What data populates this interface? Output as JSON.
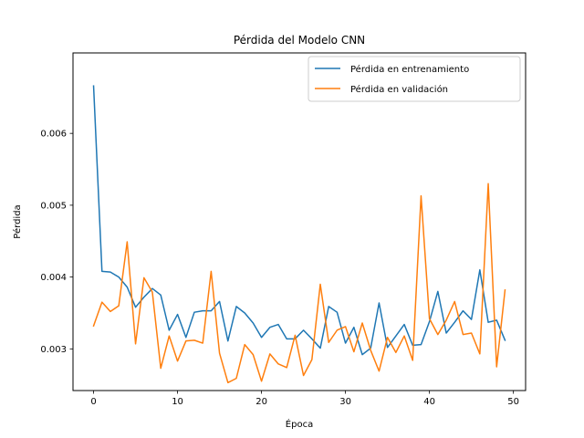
{
  "chart_data": {
    "type": "line",
    "title": "Pérdida del Modelo CNN",
    "xlabel": "Época",
    "ylabel": "Pérdida",
    "xlim": [
      -2.45,
      51.45
    ],
    "ylim": [
      0.00242,
      0.00712
    ],
    "xticks": [
      0,
      10,
      20,
      30,
      40,
      50
    ],
    "xtick_labels": [
      "0",
      "10",
      "20",
      "30",
      "40",
      "50"
    ],
    "yticks": [
      0.003,
      0.004,
      0.005,
      0.006
    ],
    "ytick_labels": [
      "0.003",
      "0.004",
      "0.005",
      "0.006"
    ],
    "grid": false,
    "legend_position": "top-right",
    "x": [
      0,
      1,
      2,
      3,
      4,
      5,
      6,
      7,
      8,
      9,
      10,
      11,
      12,
      13,
      14,
      15,
      16,
      17,
      18,
      19,
      20,
      21,
      22,
      23,
      24,
      25,
      26,
      27,
      28,
      29,
      30,
      31,
      32,
      33,
      34,
      35,
      36,
      37,
      38,
      39,
      40,
      41,
      42,
      43,
      44,
      45,
      46,
      47,
      48,
      49
    ],
    "series": [
      {
        "name": "Pérdida en entrenamiento",
        "color": "#1f77b4",
        "values": [
          0.00666,
          0.00408,
          0.00407,
          0.004,
          0.00386,
          0.00358,
          0.00372,
          0.00384,
          0.00375,
          0.00326,
          0.00348,
          0.00316,
          0.00351,
          0.00353,
          0.00353,
          0.00366,
          0.00311,
          0.00359,
          0.0035,
          0.00336,
          0.00316,
          0.0033,
          0.00334,
          0.00314,
          0.00314,
          0.00326,
          0.00314,
          0.00301,
          0.00359,
          0.00351,
          0.00308,
          0.0033,
          0.00292,
          0.00301,
          0.00364,
          0.00302,
          0.00318,
          0.00334,
          0.00305,
          0.00306,
          0.00338,
          0.0038,
          0.00322,
          0.00337,
          0.00353,
          0.00341,
          0.0041,
          0.00337,
          0.0034,
          0.00312
        ]
      },
      {
        "name": "Pérdida en validación",
        "color": "#ff7f0e",
        "values": [
          0.00332,
          0.00365,
          0.00352,
          0.0036,
          0.00449,
          0.00307,
          0.00399,
          0.00379,
          0.00273,
          0.00318,
          0.00283,
          0.00311,
          0.00312,
          0.00308,
          0.00408,
          0.00294,
          0.00253,
          0.00259,
          0.00306,
          0.00292,
          0.00255,
          0.00293,
          0.00279,
          0.00274,
          0.00319,
          0.00263,
          0.00285,
          0.0039,
          0.00309,
          0.00326,
          0.00331,
          0.00296,
          0.00336,
          0.00298,
          0.00269,
          0.00316,
          0.00295,
          0.00318,
          0.00284,
          0.00513,
          0.00342,
          0.0032,
          0.0034,
          0.00366,
          0.0032,
          0.00322,
          0.00293,
          0.0053,
          0.00275,
          0.00382
        ]
      }
    ]
  }
}
